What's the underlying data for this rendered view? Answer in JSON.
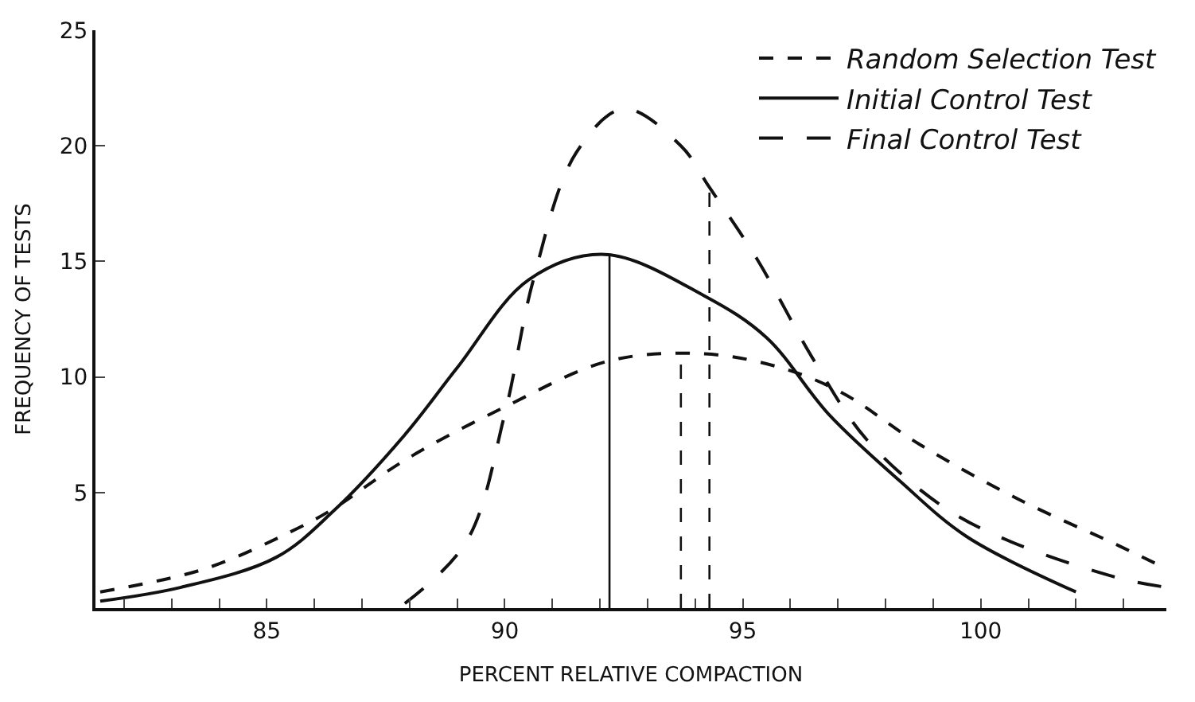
{
  "chart_data": {
    "type": "line",
    "xlabel": "PERCENT RELATIVE COMPACTION",
    "ylabel": "FREQUENCY OF TESTS",
    "xlim": [
      81.4,
      103.9
    ],
    "ylim": [
      0,
      25
    ],
    "xticks": [
      {
        "value": 82,
        "label": null
      },
      {
        "value": 83,
        "label": null
      },
      {
        "value": 84,
        "label": null
      },
      85,
      {
        "value": 86,
        "label": null
      },
      {
        "value": 87,
        "label": null
      },
      {
        "value": 88,
        "label": null
      },
      {
        "value": 89,
        "label": null
      },
      90,
      {
        "value": 91,
        "label": null
      },
      {
        "value": 92,
        "label": null
      },
      {
        "value": 93,
        "label": null
      },
      {
        "value": 94,
        "label": null
      },
      95,
      {
        "value": 96,
        "label": null
      },
      {
        "value": 97,
        "label": null
      },
      {
        "value": 98,
        "label": null
      },
      {
        "value": 99,
        "label": null
      },
      100,
      {
        "value": 101,
        "label": null
      },
      {
        "value": 102,
        "label": null
      },
      {
        "value": 103,
        "label": null
      }
    ],
    "yticks": [
      5,
      10,
      15,
      20,
      25
    ],
    "legend": "top right",
    "marker": "none",
    "series": [
      {
        "name": "Random Selection Test",
        "color": "#111111",
        "line_style": "dashed",
        "x": [
          81.5,
          83.7,
          85.5,
          86.4,
          87.9,
          90.0,
          92.2,
          94.2,
          95.8,
          97.1,
          98.7,
          100.8,
          102.9,
          103.9
        ],
        "values": [
          0.7,
          1.7,
          3.3,
          4.3,
          6.4,
          8.7,
          10.7,
          11.0,
          10.4,
          9.3,
          7.1,
          4.7,
          2.7,
          1.7
        ]
      },
      {
        "name": "Initial Control Test",
        "color": "#111111",
        "line_style": "solid",
        "x": [
          81.5,
          83.2,
          85.2,
          86.4,
          87.9,
          89.0,
          90.5,
          92.1,
          94.2,
          95.5,
          96.8,
          98.3,
          99.7,
          102.0
        ],
        "values": [
          0.3,
          0.9,
          2.2,
          4.2,
          7.5,
          10.4,
          14.2,
          15.3,
          13.5,
          11.7,
          8.4,
          5.5,
          3.1,
          0.7
        ]
      },
      {
        "name": "Final Control Test",
        "color": "#111111",
        "line_style": "longdash",
        "x": [
          87.9,
          89.2,
          90.0,
          90.6,
          91.5,
          92.5,
          93.7,
          94.3,
          95.3,
          96.5,
          97.6,
          99.2,
          100.6,
          102.9,
          103.9
        ],
        "values": [
          0.2,
          2.9,
          8.4,
          14.2,
          19.7,
          21.6,
          20.0,
          18.2,
          15.1,
          10.7,
          7.3,
          4.4,
          2.9,
          1.3,
          0.9
        ]
      },
      {
        "color": "#111111",
        "line_style": "solid",
        "x": [
          92.2,
          92.2
        ],
        "values": [
          0,
          15.3
        ]
      },
      {
        "color": "#111111",
        "line_style": "dashed",
        "x": [
          93.7,
          93.7
        ],
        "values": [
          0,
          11.0
        ]
      },
      {
        "color": "#111111",
        "line_style": "dashed",
        "x": [
          94.3,
          94.3
        ],
        "values": [
          0,
          18.2
        ]
      }
    ]
  }
}
